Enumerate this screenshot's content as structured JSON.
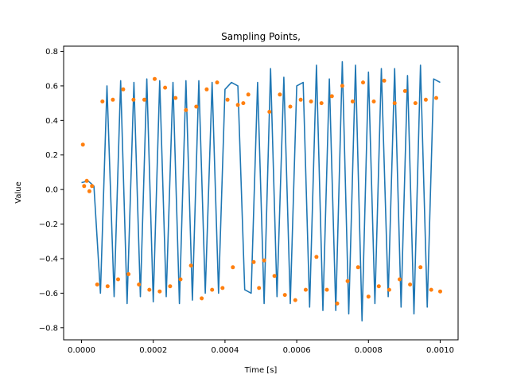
{
  "chart_data": {
    "type": "line",
    "title": "Sampling Points,",
    "xlabel": "Time [s]",
    "ylabel": "Value",
    "xlim": [
      -5e-05,
      0.00105
    ],
    "ylim": [
      -0.87,
      0.83
    ],
    "x_ticks": [
      0.0,
      0.0002,
      0.0004,
      0.0006,
      0.0008,
      0.001
    ],
    "x_tick_labels": [
      "0.0000",
      "0.0002",
      "0.0004",
      "0.0006",
      "0.0008",
      "0.0010"
    ],
    "y_ticks": [
      -0.8,
      -0.6,
      -0.4,
      -0.2,
      0.0,
      0.2,
      0.4,
      0.6,
      0.8
    ],
    "y_tick_labels": [
      "−0.8",
      "−0.6",
      "−0.4",
      "−0.2",
      "0.0",
      "0.2",
      "0.4",
      "0.6",
      "0.8"
    ],
    "grid": false,
    "legend": "none",
    "series": [
      {
        "style": "line",
        "color": "#1f77b4",
        "x": [
          0.0,
          1.82e-05,
          3.45e-05,
          5.27e-05,
          7.09e-05,
          9.09e-05,
          0.000109,
          0.000127,
          0.000146,
          0.000164,
          0.000182,
          0.0002,
          0.000218,
          0.000236,
          0.000255,
          0.000273,
          0.000291,
          0.000309,
          0.000327,
          0.000345,
          0.000364,
          0.000382,
          0.0004,
          0.000418,
          0.000436,
          0.000455,
          0.000473,
          0.000491,
          0.000509,
          0.000527,
          0.000545,
          0.000564,
          0.000582,
          0.0006,
          0.000618,
          0.000636,
          0.000655,
          0.000673,
          0.000691,
          0.000709,
          0.000727,
          0.000745,
          0.000764,
          0.000782,
          0.0008,
          0.000818,
          0.000836,
          0.000855,
          0.000873,
          0.000891,
          0.000909,
          0.000927,
          0.000945,
          0.000964,
          0.000982,
          0.001
        ],
        "y": [
          0.04,
          0.05,
          0.02,
          -0.6,
          0.6,
          -0.62,
          0.63,
          -0.66,
          0.62,
          -0.62,
          0.64,
          -0.65,
          0.63,
          -0.62,
          0.62,
          -0.66,
          0.63,
          -0.64,
          0.63,
          -0.6,
          0.62,
          -0.6,
          0.58,
          0.62,
          0.6,
          -0.58,
          -0.6,
          0.62,
          -0.66,
          0.7,
          -0.62,
          0.65,
          -0.66,
          0.6,
          0.62,
          -0.68,
          0.72,
          -0.7,
          0.64,
          -0.7,
          0.74,
          -0.72,
          0.72,
          -0.76,
          0.68,
          -0.66,
          0.7,
          -0.62,
          0.7,
          -0.68,
          0.66,
          -0.72,
          0.72,
          -0.68,
          0.64,
          0.62
        ]
      },
      {
        "style": "scatter",
        "color": "#ff7f0e",
        "x": [
          3.6e-06,
          7.3e-06,
          1.45e-05,
          2.18e-05,
          2.91e-05,
          4.36e-05,
          5.82e-05,
          7.27e-05,
          8.73e-05,
          0.000102,
          0.000116,
          0.000131,
          0.000145,
          0.00016,
          0.000175,
          0.000189,
          0.000204,
          0.000218,
          0.000233,
          0.000247,
          0.000262,
          0.000276,
          0.000291,
          0.000305,
          0.00032,
          0.000335,
          0.000349,
          0.000364,
          0.000378,
          0.000393,
          0.000407,
          0.000422,
          0.000436,
          0.000451,
          0.000465,
          0.00048,
          0.000495,
          0.000509,
          0.000524,
          0.000538,
          0.000553,
          0.000567,
          0.000582,
          0.000596,
          0.000611,
          0.000625,
          0.00064,
          0.000655,
          0.000669,
          0.000684,
          0.000698,
          0.000713,
          0.000727,
          0.000742,
          0.000756,
          0.000771,
          0.000785,
          0.0008,
          0.000815,
          0.000829,
          0.000844,
          0.000858,
          0.000873,
          0.000887,
          0.000902,
          0.000916,
          0.000931,
          0.000945,
          0.00096,
          0.000975,
          0.000989,
          0.001
        ],
        "y": [
          0.26,
          0.02,
          0.05,
          -0.01,
          0.02,
          -0.55,
          0.51,
          -0.56,
          0.52,
          -0.52,
          0.58,
          -0.49,
          0.52,
          -0.55,
          0.52,
          -0.58,
          0.64,
          -0.59,
          0.59,
          -0.56,
          0.53,
          -0.52,
          0.46,
          -0.44,
          0.48,
          -0.63,
          0.58,
          -0.58,
          0.62,
          -0.57,
          0.52,
          -0.45,
          0.49,
          0.5,
          0.55,
          -0.42,
          -0.57,
          -0.41,
          0.45,
          -0.5,
          0.55,
          -0.61,
          0.48,
          -0.64,
          0.52,
          -0.58,
          0.51,
          -0.39,
          0.5,
          -0.58,
          0.54,
          -0.66,
          0.6,
          -0.53,
          0.51,
          -0.45,
          0.62,
          -0.62,
          0.51,
          -0.56,
          0.63,
          -0.58,
          0.5,
          -0.52,
          0.57,
          -0.55,
          0.5,
          -0.45,
          0.52,
          -0.58,
          0.53,
          -0.59
        ]
      }
    ]
  }
}
